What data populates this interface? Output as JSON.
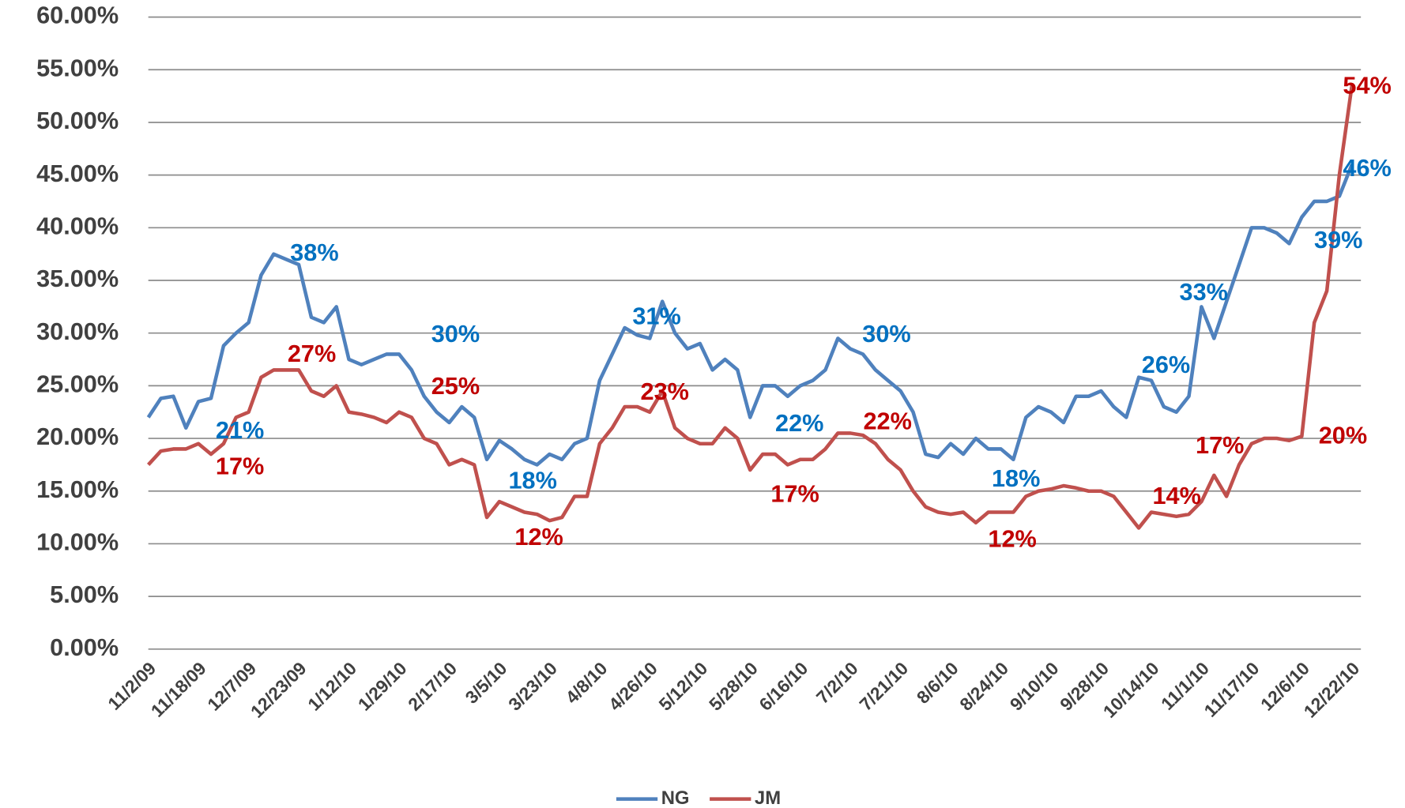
{
  "chart_data": {
    "type": "line",
    "categories": [
      "11/2/09",
      null,
      null,
      null,
      "11/18/09",
      null,
      null,
      null,
      "12/7/09",
      null,
      null,
      null,
      "12/23/09",
      null,
      null,
      null,
      "1/12/10",
      null,
      null,
      null,
      "1/29/10",
      null,
      null,
      null,
      "2/17/10",
      null,
      null,
      null,
      "3/5/10",
      null,
      null,
      null,
      "3/23/10",
      null,
      null,
      null,
      "4/8/10",
      null,
      null,
      null,
      "4/26/10",
      null,
      null,
      null,
      "5/12/10",
      null,
      null,
      null,
      "5/28/10",
      null,
      null,
      null,
      "6/16/10",
      null,
      null,
      null,
      "7/2/10",
      null,
      null,
      null,
      "7/21/10",
      null,
      null,
      null,
      "8/6/10",
      null,
      null,
      null,
      "8/24/10",
      null,
      null,
      null,
      "9/10/10",
      null,
      null,
      null,
      "9/28/10",
      null,
      null,
      null,
      "10/14/10",
      null,
      null,
      null,
      "11/1/10",
      null,
      null,
      null,
      "11/17/10",
      null,
      null,
      null,
      "12/6/10",
      null,
      null,
      null,
      "12/22/10"
    ],
    "series": [
      {
        "name": "NG",
        "color": "#4f81bd",
        "values": [
          22,
          23.8,
          24,
          21,
          23.5,
          23.8,
          28.8,
          30,
          31,
          35.5,
          37.5,
          37,
          36.5,
          31.5,
          31,
          32.5,
          27.5,
          27,
          27.5,
          28,
          28,
          26.5,
          24,
          22.5,
          21.5,
          23,
          22,
          18,
          19.8,
          19,
          18,
          17.5,
          18.5,
          18,
          19.5,
          20,
          25.5,
          28,
          30.5,
          29.8,
          29.5,
          33,
          30,
          28.5,
          29,
          26.5,
          27.5,
          26.5,
          22,
          25,
          25,
          24,
          25,
          25.5,
          26.5,
          29.5,
          28.5,
          28,
          26.5,
          25.5,
          24.5,
          22.5,
          18.5,
          18.2,
          19.5,
          18.5,
          20,
          19,
          19,
          18,
          22,
          23,
          22.5,
          21.5,
          24,
          24,
          24.5,
          23,
          22,
          25.8,
          25.5,
          23,
          22.5,
          24,
          32.5,
          29.5,
          33,
          36.5,
          40,
          40,
          39.5,
          38.5,
          41,
          42.5,
          42.5,
          43,
          46
        ]
      },
      {
        "name": "JM",
        "color": "#c0504d",
        "values": [
          17.5,
          18.8,
          19,
          19,
          19.5,
          18.5,
          19.5,
          22,
          22.5,
          25.8,
          26.5,
          26.5,
          26.5,
          24.5,
          24,
          25,
          22.5,
          22.3,
          22,
          21.5,
          22.5,
          22,
          20,
          19.5,
          17.5,
          18,
          17.5,
          12.5,
          14,
          13.5,
          13,
          12.8,
          12.2,
          12.5,
          14.5,
          14.5,
          19.5,
          21,
          23,
          23,
          22.5,
          24.5,
          21,
          20,
          19.5,
          19.5,
          21,
          20,
          17,
          18.5,
          18.5,
          17.5,
          18,
          18,
          19,
          20.5,
          20.5,
          20.3,
          19.5,
          18,
          17,
          15,
          13.5,
          13,
          12.8,
          13,
          12,
          13,
          13,
          13,
          14.5,
          15,
          15.2,
          15.5,
          15.3,
          15,
          15,
          14.5,
          13,
          11.5,
          13,
          12.8,
          12.6,
          12.8,
          14,
          16.5,
          14.5,
          17.5,
          19.5,
          20,
          20,
          19.8,
          20.2,
          31,
          34,
          45,
          53.5
        ]
      }
    ],
    "ylim": [
      0,
      60
    ],
    "yticks": [
      {
        "value": 0,
        "label": "0.00%"
      },
      {
        "value": 5,
        "label": "5.00%"
      },
      {
        "value": 10,
        "label": "10.00%"
      },
      {
        "value": 15,
        "label": "15.00%"
      },
      {
        "value": 20,
        "label": "20.00%"
      },
      {
        "value": 25,
        "label": "25.00%"
      },
      {
        "value": 30,
        "label": "30.00%"
      },
      {
        "value": 35,
        "label": "35.00%"
      },
      {
        "value": 40,
        "label": "40.00%"
      },
      {
        "value": 45,
        "label": "45.00%"
      },
      {
        "value": 50,
        "label": "50.00%"
      },
      {
        "value": 55,
        "label": "55.00%"
      },
      {
        "value": 60,
        "label": "60.00%"
      }
    ],
    "grid": true,
    "legend": "bottom",
    "annotations": [
      {
        "text": "38%",
        "color": "#0070c0"
      },
      {
        "text": "21%",
        "color": "#0070c0"
      },
      {
        "text": "30%",
        "color": "#0070c0"
      },
      {
        "text": "18%",
        "color": "#0070c0"
      },
      {
        "text": "31%",
        "color": "#0070c0"
      },
      {
        "text": "22%",
        "color": "#0070c0"
      },
      {
        "text": "30%",
        "color": "#0070c0"
      },
      {
        "text": "18%",
        "color": "#0070c0"
      },
      {
        "text": "26%",
        "color": "#0070c0"
      },
      {
        "text": "33%",
        "color": "#0070c0"
      },
      {
        "text": "39%",
        "color": "#0070c0"
      },
      {
        "text": "46%",
        "color": "#0070c0"
      },
      {
        "text": "17%",
        "color": "#c00000"
      },
      {
        "text": "27%",
        "color": "#c00000"
      },
      {
        "text": "25%",
        "color": "#c00000"
      },
      {
        "text": "12%",
        "color": "#c00000"
      },
      {
        "text": "23%",
        "color": "#c00000"
      },
      {
        "text": "17%",
        "color": "#c00000"
      },
      {
        "text": "22%",
        "color": "#c00000"
      },
      {
        "text": "12%",
        "color": "#c00000"
      },
      {
        "text": "14%",
        "color": "#c00000"
      },
      {
        "text": "17%",
        "color": "#c00000"
      },
      {
        "text": "20%",
        "color": "#c00000"
      },
      {
        "text": "54%",
        "color": "#c00000"
      }
    ]
  }
}
